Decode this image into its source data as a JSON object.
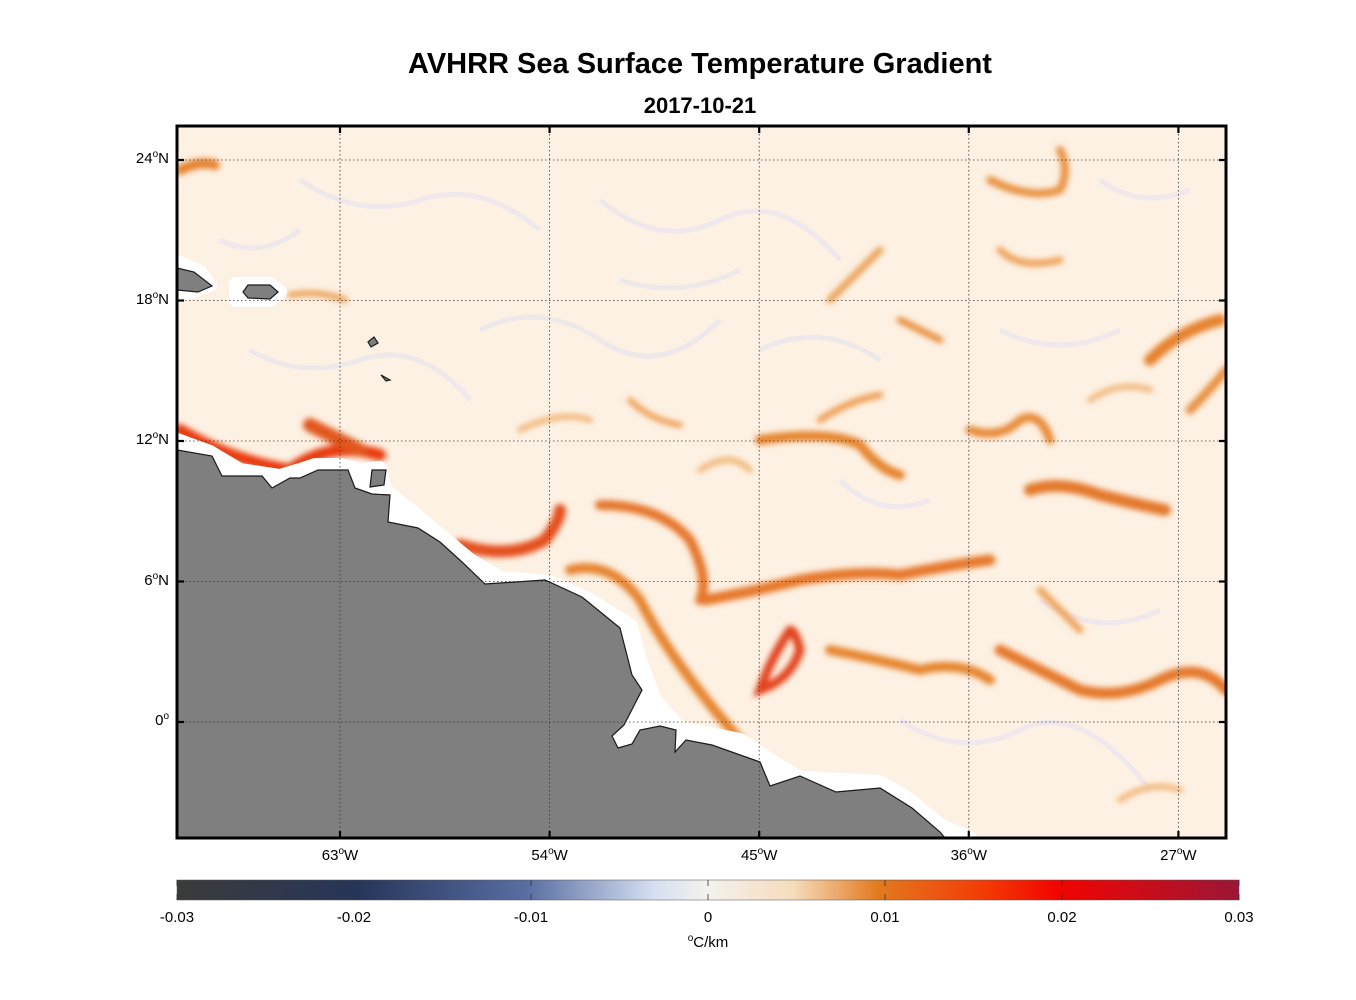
{
  "title": "AVHRR Sea Surface Temperature Gradient",
  "date": "2017-10-21",
  "lat_labels": [
    {
      "deg": "24",
      "hemi": "N",
      "value": 24
    },
    {
      "deg": "18",
      "hemi": "N",
      "value": 18
    },
    {
      "deg": "12",
      "hemi": "N",
      "value": 12
    },
    {
      "deg": "6",
      "hemi": "N",
      "value": 6
    },
    {
      "deg": "0",
      "hemi": "",
      "value": 0
    }
  ],
  "lon_labels": [
    {
      "deg": "63",
      "hemi": "W",
      "value": -63
    },
    {
      "deg": "54",
      "hemi": "W",
      "value": -54
    },
    {
      "deg": "45",
      "hemi": "W",
      "value": -45
    },
    {
      "deg": "36",
      "hemi": "W",
      "value": -36
    },
    {
      "deg": "27",
      "hemi": "W",
      "value": -27
    }
  ],
  "map_extent": {
    "lon": [
      -70,
      -25
    ],
    "lat": [
      -5,
      25
    ]
  },
  "colorbar": {
    "ticks": [
      "-0.03",
      "-0.02",
      "-0.01",
      "0",
      "0.01",
      "0.02",
      "0.03"
    ],
    "tick_values": [
      -0.03,
      -0.02,
      -0.01,
      0,
      0.01,
      0.02,
      0.03
    ],
    "unit_symbol": "o",
    "unit": "C/km",
    "colors": [
      "#3a3a3a",
      "#2c3a5e",
      "#5a6ea0",
      "#e9eef6",
      "#fbf0e0",
      "#e27014",
      "#f21a00",
      "#9a1530"
    ]
  },
  "land_color": "#7f7f7f",
  "ocean_color": "#fdf1e3"
}
